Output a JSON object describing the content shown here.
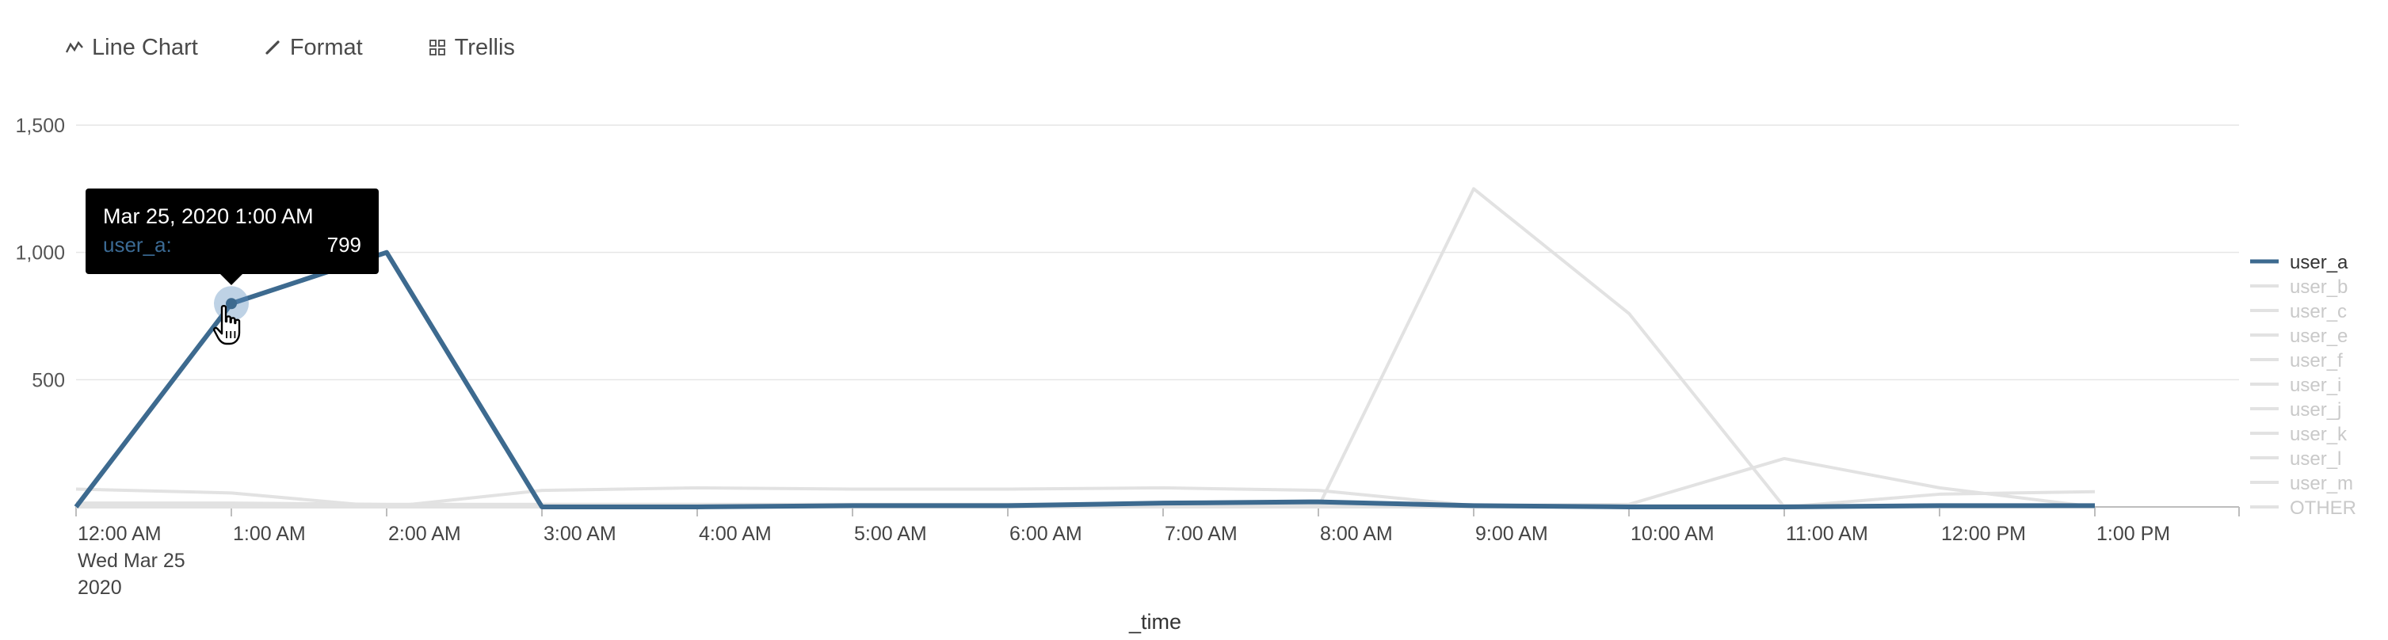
{
  "toolbar": {
    "line_chart_label": "Line Chart",
    "format_label": "Format",
    "trellis_label": "Trellis"
  },
  "tooltip": {
    "title": "Mar 25, 2020 1:00 AM",
    "series": "user_a:",
    "value": "799"
  },
  "colors": {
    "highlight": "#3d6a8f",
    "muted": "#e2e2e2",
    "legend_muted_text": "#c9c9c9",
    "grid": "#e6e6e6",
    "axis": "#bdbdbd"
  },
  "chart_data": {
    "type": "line",
    "title": "",
    "xlabel": "_time",
    "ylabel": "",
    "ylim": [
      0,
      1500
    ],
    "yticks": [
      500,
      1000,
      1500
    ],
    "ytick_labels": [
      "500",
      "1,000",
      "1,500"
    ],
    "grid": true,
    "legend_position": "right",
    "x": [
      "12:00 AM",
      "1:00 AM",
      "2:00 AM",
      "3:00 AM",
      "4:00 AM",
      "5:00 AM",
      "6:00 AM",
      "7:00 AM",
      "8:00 AM",
      "9:00 AM",
      "10:00 AM",
      "11:00 AM",
      "12:00 PM",
      "1:00 PM"
    ],
    "x_first_label_extra": [
      "Wed Mar 25",
      "2020"
    ],
    "highlighted_series": "user_a",
    "series": [
      {
        "name": "user_a",
        "values": [
          0,
          799,
          1000,
          0,
          0,
          5,
          5,
          15,
          20,
          5,
          0,
          0,
          5,
          5
        ]
      },
      {
        "name": "user_b",
        "values": [
          70,
          55,
          0,
          65,
          75,
          70,
          70,
          75,
          65,
          5,
          10,
          190,
          75,
          0
        ]
      },
      {
        "name": "user_c",
        "values": [
          0,
          0,
          0,
          0,
          0,
          0,
          0,
          0,
          0,
          1250,
          760,
          0,
          0,
          0
        ]
      },
      {
        "name": "user_e",
        "values": [
          0,
          0,
          0,
          0,
          0,
          0,
          0,
          0,
          0,
          0,
          0,
          0,
          50,
          60
        ]
      },
      {
        "name": "user_f",
        "values": [
          15,
          15,
          10,
          10,
          10,
          10,
          10,
          10,
          10,
          5,
          5,
          5,
          5,
          5
        ]
      },
      {
        "name": "user_i",
        "values": [
          10,
          10,
          5,
          5,
          5,
          5,
          5,
          5,
          5,
          5,
          5,
          5,
          5,
          5
        ]
      },
      {
        "name": "user_j",
        "values": [
          5,
          5,
          5,
          5,
          5,
          5,
          5,
          5,
          5,
          0,
          0,
          0,
          0,
          0
        ]
      },
      {
        "name": "user_k",
        "values": [
          5,
          5,
          0,
          0,
          0,
          0,
          0,
          0,
          0,
          0,
          0,
          0,
          0,
          0
        ]
      },
      {
        "name": "user_l",
        "values": [
          0,
          0,
          0,
          0,
          0,
          0,
          0,
          0,
          0,
          0,
          0,
          0,
          0,
          0
        ]
      },
      {
        "name": "user_m",
        "values": [
          0,
          0,
          0,
          0,
          0,
          0,
          0,
          0,
          0,
          0,
          0,
          0,
          0,
          0
        ]
      },
      {
        "name": "OTHER",
        "values": [
          0,
          0,
          0,
          0,
          0,
          0,
          0,
          0,
          0,
          0,
          0,
          0,
          0,
          0
        ]
      }
    ]
  }
}
